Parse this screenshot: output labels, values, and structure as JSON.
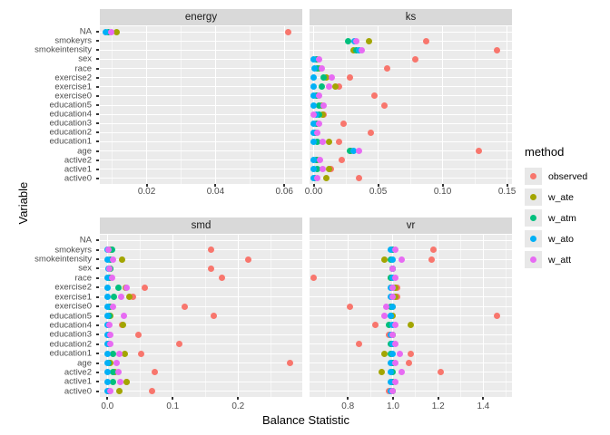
{
  "title_x": "Balance Statistic",
  "title_y": "Variable",
  "legend": {
    "title": "method",
    "items": [
      {
        "label": "observed",
        "color": "#F8766D"
      },
      {
        "label": "w_ate",
        "color": "#A3A500"
      },
      {
        "label": "w_atm",
        "color": "#00BF7D"
      },
      {
        "label": "w_ato",
        "color": "#00B0F6"
      },
      {
        "label": "w_att",
        "color": "#E76BF3"
      }
    ]
  },
  "categories": [
    "NA",
    "smokeyrs",
    "smokeintensity",
    "sex",
    "race",
    "exercise2",
    "exercise1",
    "exercise0",
    "education5",
    "education4",
    "education3",
    "education2",
    "education1",
    "age",
    "active2",
    "active1",
    "active0"
  ],
  "chart_data": [
    {
      "type": "scatter",
      "facet": "energy",
      "xlim": [
        0.0064,
        0.0652
      ],
      "tick_values": [
        0.02,
        0.04,
        0.06
      ],
      "tick_labels": [
        "0.02",
        "0.04",
        "0.06"
      ],
      "minor_ticks": [
        0.01,
        0.03,
        0.05
      ],
      "series": [
        {
          "method": "observed",
          "color": "#F8766D",
          "points": {
            "NA": 0.0611
          }
        },
        {
          "method": "w_ate",
          "color": "#A3A500",
          "points": {
            "NA": 0.0112
          }
        },
        {
          "method": "w_atm",
          "color": "#00BF7D",
          "points": {
            "NA": 0.009
          }
        },
        {
          "method": "w_ato",
          "color": "#00B0F6",
          "points": {
            "NA": 0.008
          }
        },
        {
          "method": "w_att",
          "color": "#E76BF3",
          "points": {
            "NA": 0.0098
          }
        }
      ]
    },
    {
      "type": "scatter",
      "facet": "ks",
      "xlim": [
        -0.0032,
        0.1538
      ],
      "tick_values": [
        0.0,
        0.05,
        0.1,
        0.15
      ],
      "tick_labels": [
        "0.00",
        "0.05",
        "0.10",
        "0.15"
      ],
      "minor_ticks": [
        0.025,
        0.075,
        0.125
      ],
      "series": [
        {
          "method": "observed",
          "color": "#F8766D",
          "points": {
            "smokeyrs": 0.087,
            "smokeintensity": 0.142,
            "sex": 0.079,
            "race": 0.057,
            "exercise2": 0.028,
            "exercise1": 0.02,
            "exercise0": 0.047,
            "education5": 0.055,
            "education4": 0.008,
            "education3": 0.023,
            "education2": 0.044,
            "education1": 0.02,
            "age": 0.128,
            "active2": 0.022,
            "active1": 0.013,
            "active0": 0.035
          }
        },
        {
          "method": "w_ate",
          "color": "#A3A500",
          "points": {
            "smokeyrs": 0.043,
            "smokeintensity": 0.031,
            "sex": 0.003,
            "race": 0.004,
            "exercise2": 0.01,
            "exercise1": 0.017,
            "exercise0": 0.003,
            "education5": 0.006,
            "education4": 0.007,
            "education3": 0.003,
            "education2": 0.002,
            "education1": 0.012,
            "age": 0.029,
            "active2": 0.003,
            "active1": 0.012,
            "active0": 0.01
          }
        },
        {
          "method": "w_atm",
          "color": "#00BF7D",
          "points": {
            "smokeyrs": 0.027,
            "smokeintensity": 0.033,
            "sex": 0.002,
            "race": 0.003,
            "exercise2": 0.008,
            "exercise1": 0.006,
            "exercise0": 0.002,
            "education5": 0.004,
            "education4": 0.004,
            "education3": 0.002,
            "education2": 0.001,
            "education1": 0.003,
            "age": 0.028,
            "active2": 0.002,
            "active1": 0.003,
            "active0": 0.001
          }
        },
        {
          "method": "w_ato",
          "color": "#00B0F6",
          "points": {
            "smokeyrs": 0.032,
            "smokeintensity": 0.035,
            "sex": 0.0,
            "race": 0.001,
            "exercise2": 0.0,
            "exercise1": 0.0,
            "exercise0": 0.0,
            "education5": 0.0,
            "education4": 0.002,
            "education3": 0.0,
            "education2": 0.0,
            "education1": 0.0,
            "age": 0.031,
            "active2": 0.0,
            "active1": 0.0,
            "active0": 0.0
          }
        },
        {
          "method": "w_att",
          "color": "#E76BF3",
          "points": {
            "smokeyrs": 0.033,
            "smokeintensity": 0.037,
            "sex": 0.004,
            "race": 0.006,
            "exercise2": 0.014,
            "exercise1": 0.012,
            "exercise0": 0.004,
            "education5": 0.008,
            "education4": 0.0,
            "education3": 0.004,
            "education2": 0.003,
            "education1": 0.007,
            "age": 0.035,
            "active2": 0.005,
            "active1": 0.007,
            "active0": 0.003
          }
        }
      ]
    },
    {
      "type": "scatter",
      "facet": "smd",
      "xlim": [
        -0.0115,
        0.2982
      ],
      "tick_values": [
        0.0,
        0.1,
        0.2
      ],
      "tick_labels": [
        "0.0",
        "0.1",
        "0.2"
      ],
      "minor_ticks": [
        0.05,
        0.15,
        0.25
      ],
      "series": [
        {
          "method": "observed",
          "color": "#F8766D",
          "points": {
            "smokeyrs": 0.158,
            "smokeintensity": 0.215,
            "sex": 0.158,
            "race": 0.175,
            "exercise2": 0.057,
            "exercise1": 0.039,
            "exercise0": 0.118,
            "education5": 0.163,
            "education4": 0.023,
            "education3": 0.048,
            "education2": 0.11,
            "education1": 0.051,
            "age": 0.279,
            "active2": 0.073,
            "active1": 0.03,
            "active0": 0.069
          }
        },
        {
          "method": "w_ate",
          "color": "#A3A500",
          "points": {
            "smokeyrs": 0.005,
            "smokeintensity": 0.023,
            "sex": 0.004,
            "race": 0.005,
            "exercise2": 0.028,
            "exercise1": 0.033,
            "exercise0": 0.005,
            "education5": 0.004,
            "education4": 0.024,
            "education3": 0.003,
            "education2": 0.003,
            "education1": 0.026,
            "age": 0.005,
            "active2": 0.012,
            "active1": 0.029,
            "active0": 0.019
          }
        },
        {
          "method": "w_atm",
          "color": "#00BF7D",
          "points": {
            "smokeyrs": 0.007,
            "smokeintensity": 0.004,
            "sex": 0.005,
            "race": 0.003,
            "exercise2": 0.017,
            "exercise1": 0.01,
            "exercise0": 0.003,
            "education5": 0.003,
            "education4": 0.002,
            "education3": 0.002,
            "education2": 0.002,
            "education1": 0.008,
            "age": 0.002,
            "active2": 0.009,
            "active1": 0.009,
            "active0": 0.002
          }
        },
        {
          "method": "w_ato",
          "color": "#00B0F6",
          "points": {
            "smokeyrs": 0.0,
            "smokeintensity": 0.0,
            "sex": 0.001,
            "race": 0.0,
            "exercise2": 0.0,
            "exercise1": 0.0,
            "exercise0": 0.0,
            "education5": 0.0,
            "education4": 0.0,
            "education3": 0.0,
            "education2": 0.0,
            "education1": 0.0,
            "age": 0.0,
            "active2": 0.0,
            "active1": 0.0,
            "active0": 0.0
          }
        },
        {
          "method": "w_att",
          "color": "#E76BF3",
          "points": {
            "smokeyrs": 0.002,
            "smokeintensity": 0.008,
            "sex": 0.003,
            "race": 0.007,
            "exercise2": 0.029,
            "exercise1": 0.021,
            "exercise0": 0.008,
            "education5": 0.025,
            "education4": 0.003,
            "education3": 0.004,
            "education2": 0.004,
            "education1": 0.018,
            "age": 0.014,
            "active2": 0.017,
            "active1": 0.02,
            "active0": 0.005
          }
        }
      ]
    },
    {
      "type": "scatter",
      "facet": "vr",
      "xlim": [
        0.63,
        1.527
      ],
      "tick_values": [
        0.8,
        1.0,
        1.2,
        1.4
      ],
      "tick_labels": [
        "0.8",
        "1.0",
        "1.2",
        "1.4"
      ],
      "minor_ticks": [
        0.7,
        0.9,
        1.1,
        1.3,
        1.5
      ],
      "series": [
        {
          "method": "observed",
          "color": "#F8766D",
          "points": {
            "smokeyrs": 1.18,
            "smokeintensity": 1.17,
            "sex": 1.0,
            "race": 0.65,
            "exercise2": 1.02,
            "exercise1": 1.02,
            "exercise0": 0.81,
            "education5": 1.46,
            "education4": 0.92,
            "education3": 0.98,
            "education2": 0.85,
            "education1": 1.08,
            "age": 1.07,
            "active2": 1.21,
            "active1": 1.0,
            "active0": 0.98
          }
        },
        {
          "method": "w_ate",
          "color": "#A3A500",
          "points": {
            "smokeyrs": 1.0,
            "smokeintensity": 0.96,
            "sex": 1.0,
            "race": 0.99,
            "exercise2": 1.01,
            "exercise1": 1.01,
            "exercise0": 1.0,
            "education5": 1.0,
            "education4": 1.08,
            "education3": 1.0,
            "education2": 1.0,
            "education1": 0.96,
            "age": 1.0,
            "active2": 0.95,
            "active1": 1.0,
            "active0": 1.0
          }
        },
        {
          "method": "w_atm",
          "color": "#00BF7D",
          "points": {
            "smokeyrs": 1.0,
            "smokeintensity": 0.99,
            "sex": 1.0,
            "race": 0.99,
            "exercise2": 1.0,
            "exercise1": 1.0,
            "exercise0": 0.99,
            "education5": 0.99,
            "education4": 0.98,
            "education3": 1.0,
            "education2": 0.99,
            "education1": 0.99,
            "age": 1.0,
            "active2": 1.0,
            "active1": 1.0,
            "active0": 1.0
          }
        },
        {
          "method": "w_ato",
          "color": "#00B0F6",
          "points": {
            "smokeyrs": 0.99,
            "smokeintensity": 1.0,
            "sex": 1.0,
            "race": 1.0,
            "exercise2": 0.99,
            "exercise1": 0.99,
            "exercise0": 1.0,
            "education5": 0.99,
            "education4": 1.0,
            "education3": 0.99,
            "education2": 1.0,
            "education1": 1.0,
            "age": 0.99,
            "active2": 0.99,
            "active1": 0.99,
            "active0": 0.99
          }
        },
        {
          "method": "w_att",
          "color": "#E76BF3",
          "points": {
            "smokeyrs": 1.01,
            "smokeintensity": 1.04,
            "sex": 1.0,
            "race": 1.01,
            "exercise2": 1.0,
            "exercise1": 1.0,
            "exercise0": 0.97,
            "education5": 0.96,
            "education4": 1.01,
            "education3": 1.0,
            "education2": 1.01,
            "education1": 1.03,
            "age": 1.01,
            "active2": 1.04,
            "active1": 1.01,
            "active0": 1.0
          }
        }
      ]
    }
  ]
}
